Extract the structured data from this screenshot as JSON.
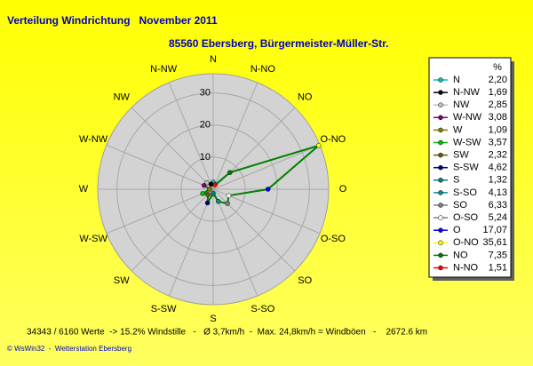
{
  "chart_data": {
    "type": "radar",
    "title": "Verteilung Windrichtung   November 2011",
    "subtitle": "85560 Ebersberg, Bürgermeister-Müller-Str.",
    "legend_title": "%",
    "direction": "counterclockwise",
    "categories": [
      "N",
      "N-NW",
      "NW",
      "W-NW",
      "W",
      "W-SW",
      "SW",
      "S-SW",
      "S",
      "S-SO",
      "SO",
      "O-SO",
      "O",
      "O-NO",
      "NO",
      "N-NO"
    ],
    "series": [
      {
        "color": "#008000",
        "values": [
          2.2,
          1.69,
          2.85,
          3.08,
          1.09,
          3.57,
          2.32,
          4.62,
          1.32,
          4.13,
          6.33,
          5.24,
          17.07,
          35.61,
          7.35,
          1.51
        ],
        "value_labels": [
          "2,20",
          "1,69",
          "2,85",
          "3,08",
          "1,09",
          "3,57",
          "2,32",
          "4,62",
          "1,32",
          "4,13",
          "6,33",
          "5,24",
          "17,07",
          "35,61",
          "7,35",
          "1,51"
        ],
        "marker_colors": [
          "#00c0c0",
          "#000000",
          "#c0c0c0",
          "#800080",
          "#808000",
          "#00c000",
          "#606000",
          "#000080",
          "#008080",
          "#009090",
          "#808080",
          "#ffffff",
          "#0000ff",
          "#ffff00",
          "#008000",
          "#ff0000"
        ]
      }
    ],
    "rlim": [
      0,
      36
    ],
    "rticks": [
      10,
      20,
      30
    ],
    "grid": true,
    "footer": "34343 / 6160 Werte  -> 15.2% Windstille   -   Ø 3,7km/h  -  Max. 24,8km/h = Windböen   -    2672.6 km",
    "credit": "© WsWin32  -  Wetterstation Ebersberg"
  }
}
